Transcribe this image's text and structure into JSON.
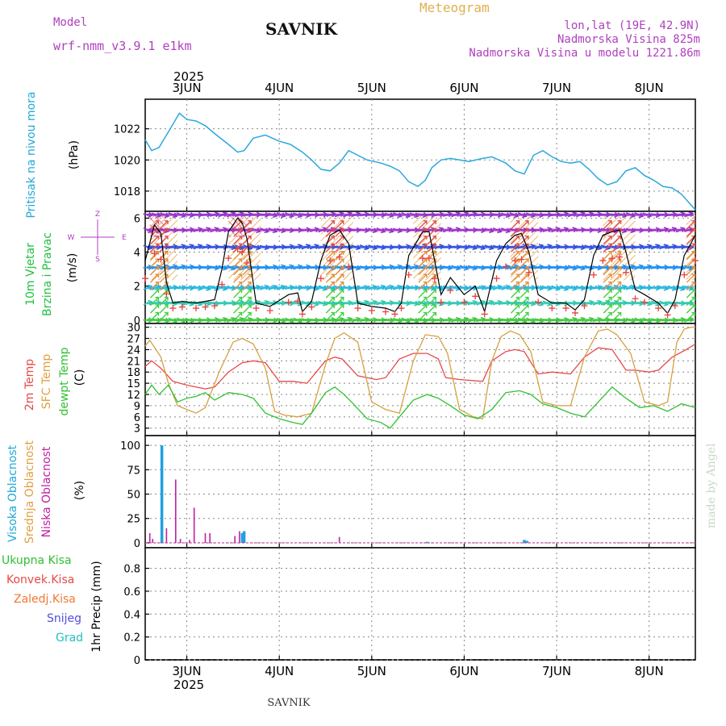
{
  "header": {
    "model_label": "Model",
    "model_name": "wrf-nmm_v3.9.1 e1km",
    "location": "SAVNIK",
    "meteogram": "Meteogram",
    "coords": "lon,lat (19E, 42.9N)",
    "elevation": "Nadmorska Visina 825m",
    "model_elevation": "Nadmorska Visina u modelu 1221.86m"
  },
  "axis": {
    "year": "2025",
    "dates": [
      "3JUN",
      "4JUN",
      "5JUN",
      "6JUN",
      "7JUN",
      "8JUN"
    ],
    "bottom_label": "SAVNIK",
    "credit": "made by Angel"
  },
  "colors": {
    "pressure": "#2aa8e0",
    "temp2m": "#e84848",
    "sfc": "#d8a040",
    "dewpt": "#30c030",
    "high_cloud": "#20a0e0",
    "mid_cloud": "#e0a040",
    "low_cloud": "#c020a0",
    "wind_speed": "#000000",
    "gust_marker": "#e84040"
  },
  "chart_data": [
    {
      "type": "line",
      "panel": "pressure",
      "ylabel": [
        "Pritisak na nivou mora",
        "(hPa)"
      ],
      "ylim": [
        1016.7,
        1023.9
      ],
      "yticks": [
        "1018",
        "1020",
        "1022"
      ],
      "x_start_day": 2.55,
      "x_end_day": 8.5,
      "series": [
        {
          "x": [
            2.55,
            2.62,
            2.7,
            2.8,
            2.92,
            3.0,
            3.1,
            3.2,
            3.3,
            3.45,
            3.55,
            3.62,
            3.72,
            3.85,
            4.0,
            4.12,
            4.25,
            4.35,
            4.45,
            4.55,
            4.65,
            4.75,
            4.85,
            4.95,
            5.1,
            5.2,
            5.3,
            5.4,
            5.5,
            5.58,
            5.65,
            5.75,
            5.85,
            5.95,
            6.05,
            6.2,
            6.3,
            6.45,
            6.55,
            6.65,
            6.75,
            6.85,
            6.95,
            7.05,
            7.15,
            7.25,
            7.35,
            7.45,
            7.55,
            7.65,
            7.75,
            7.85,
            7.95,
            8.05,
            8.15,
            8.25,
            8.35,
            8.5
          ],
          "values": [
            1021.3,
            1020.6,
            1020.8,
            1021.8,
            1023.0,
            1022.6,
            1022.5,
            1022.2,
            1021.7,
            1021.0,
            1020.5,
            1020.6,
            1021.4,
            1021.6,
            1021.2,
            1021.0,
            1020.5,
            1020.0,
            1019.4,
            1019.3,
            1019.8,
            1020.6,
            1020.3,
            1020.0,
            1019.8,
            1019.6,
            1019.3,
            1018.6,
            1018.3,
            1018.7,
            1019.5,
            1020.0,
            1020.1,
            1020.0,
            1019.9,
            1020.1,
            1020.2,
            1019.8,
            1019.3,
            1019.1,
            1020.3,
            1020.6,
            1020.2,
            1019.9,
            1019.8,
            1019.9,
            1019.4,
            1018.8,
            1018.4,
            1018.6,
            1019.3,
            1019.5,
            1019.0,
            1018.7,
            1018.3,
            1018.2,
            1017.8,
            1016.8
          ]
        }
      ]
    },
    {
      "type": "line",
      "panel": "wind",
      "ylabel": [
        "10m Vjetar",
        "Brzina i Pravac",
        "(m/s)"
      ],
      "compass": [
        "Z",
        "W",
        "E",
        "S"
      ],
      "ylim": [
        -0.2,
        6.4
      ],
      "yticks": [
        "0",
        "2",
        "4",
        "6"
      ],
      "series": [
        {
          "name": "speed",
          "x": [
            2.55,
            2.65,
            2.72,
            2.78,
            2.85,
            2.95,
            3.1,
            3.2,
            3.3,
            3.38,
            3.45,
            3.55,
            3.6,
            3.65,
            3.75,
            3.9,
            4.1,
            4.2,
            4.25,
            4.35,
            4.45,
            4.55,
            4.65,
            4.75,
            4.85,
            5.0,
            5.15,
            5.25,
            5.32,
            5.4,
            5.55,
            5.62,
            5.68,
            5.75,
            5.85,
            6.0,
            6.12,
            6.22,
            6.35,
            6.45,
            6.55,
            6.62,
            6.7,
            6.8,
            6.95,
            7.1,
            7.2,
            7.3,
            7.4,
            7.5,
            7.6,
            7.68,
            7.75,
            7.85,
            7.95,
            8.1,
            8.2,
            8.28,
            8.38,
            8.5
          ],
          "values": [
            3.5,
            5.6,
            5.1,
            2.2,
            1.0,
            1.1,
            1.0,
            1.1,
            1.2,
            3.0,
            5.2,
            6.0,
            5.7,
            4.8,
            1.0,
            0.8,
            1.5,
            1.6,
            0.5,
            1.1,
            3.5,
            5.0,
            5.3,
            4.5,
            1.0,
            0.8,
            0.7,
            0.5,
            1.0,
            3.8,
            5.2,
            5.2,
            3.5,
            1.5,
            2.5,
            1.5,
            2.0,
            0.5,
            3.5,
            4.5,
            5.0,
            5.1,
            4.0,
            1.5,
            1.0,
            1.0,
            0.6,
            1.2,
            3.8,
            5.0,
            5.2,
            5.3,
            4.0,
            1.8,
            1.5,
            1.0,
            0.4,
            1.2,
            3.8,
            5.0
          ]
        }
      ]
    },
    {
      "type": "line",
      "panel": "temperature",
      "ylabel": [
        "2m Temp",
        "SFC Temp",
        "dewpt Temp",
        "(C)"
      ],
      "ylim": [
        1.0,
        31.0
      ],
      "yticks": [
        "3",
        "6",
        "9",
        "12",
        "15",
        "18",
        "21",
        "24",
        "27",
        "30"
      ],
      "series": [
        {
          "name": "2m",
          "x": [
            2.55,
            2.62,
            2.72,
            2.85,
            3.0,
            3.1,
            3.2,
            3.3,
            3.45,
            3.6,
            3.72,
            3.85,
            4.0,
            4.15,
            4.3,
            4.5,
            4.6,
            4.68,
            4.85,
            5.05,
            5.15,
            5.3,
            5.45,
            5.6,
            5.72,
            5.8,
            5.95,
            6.2,
            6.3,
            6.45,
            6.55,
            6.65,
            6.8,
            6.95,
            7.15,
            7.3,
            7.45,
            7.6,
            7.75,
            7.85,
            8.0,
            8.1,
            8.25,
            8.4,
            8.5
          ],
          "values": [
            19.5,
            21.0,
            19.0,
            15.5,
            14.5,
            14.0,
            13.5,
            14.0,
            18.0,
            20.5,
            21.0,
            20.5,
            15.5,
            15.5,
            15.0,
            21.0,
            22.0,
            21.5,
            17.0,
            16.0,
            16.5,
            21.5,
            23.0,
            23.0,
            21.5,
            16.5,
            16.0,
            15.5,
            21.0,
            23.5,
            24.0,
            23.5,
            17.5,
            18.0,
            17.5,
            22.0,
            24.5,
            24.0,
            18.5,
            18.5,
            18.0,
            18.5,
            22.0,
            24.0,
            25.5
          ]
        },
        {
          "name": "sfc",
          "x": [
            2.55,
            2.6,
            2.72,
            2.8,
            2.9,
            3.0,
            3.1,
            3.2,
            3.35,
            3.5,
            3.6,
            3.72,
            3.85,
            3.95,
            4.05,
            4.2,
            4.35,
            4.5,
            4.6,
            4.7,
            4.85,
            5.0,
            5.15,
            5.3,
            5.45,
            5.58,
            5.72,
            5.82,
            5.95,
            6.1,
            6.2,
            6.3,
            6.4,
            6.5,
            6.6,
            6.72,
            6.85,
            7.0,
            7.15,
            7.3,
            7.45,
            7.55,
            7.65,
            7.8,
            7.95,
            8.1,
            8.2,
            8.3,
            8.38,
            8.45,
            8.5
          ],
          "values": [
            25.0,
            26.5,
            22.0,
            15.0,
            9.0,
            8.0,
            7.0,
            8.5,
            18.0,
            26.0,
            27.0,
            25.5,
            19.0,
            7.5,
            6.5,
            6.0,
            7.0,
            20.0,
            27.0,
            28.5,
            26.0,
            10.0,
            8.0,
            7.0,
            21.0,
            28.0,
            27.5,
            23.0,
            8.0,
            6.0,
            5.5,
            21.0,
            27.5,
            29.0,
            28.0,
            23.5,
            10.0,
            9.0,
            9.0,
            22.0,
            29.0,
            29.5,
            28.0,
            23.0,
            10.0,
            9.0,
            10.0,
            26.0,
            29.5,
            30.0,
            30.0
          ]
        },
        {
          "name": "dewpt",
          "x": [
            2.55,
            2.62,
            2.7,
            2.8,
            2.9,
            3.0,
            3.1,
            3.2,
            3.3,
            3.45,
            3.6,
            3.72,
            3.85,
            4.0,
            4.15,
            4.25,
            4.35,
            4.5,
            4.6,
            4.7,
            4.8,
            4.95,
            5.1,
            5.2,
            5.3,
            5.45,
            5.6,
            5.72,
            5.85,
            6.0,
            6.15,
            6.3,
            6.45,
            6.6,
            6.72,
            6.85,
            7.0,
            7.15,
            7.3,
            7.45,
            7.6,
            7.75,
            7.9,
            8.05,
            8.2,
            8.35,
            8.5
          ],
          "values": [
            12.0,
            14.5,
            12.0,
            14.5,
            10.0,
            11.0,
            11.5,
            12.5,
            10.5,
            12.5,
            12.0,
            11.0,
            7.0,
            5.5,
            4.5,
            4.0,
            7.0,
            12.5,
            14.0,
            12.0,
            9.5,
            5.5,
            4.5,
            3.0,
            6.0,
            10.5,
            12.0,
            11.0,
            9.0,
            6.5,
            5.5,
            8.0,
            12.5,
            13.0,
            12.0,
            9.5,
            8.5,
            7.0,
            6.0,
            10.0,
            14.0,
            11.0,
            8.5,
            9.0,
            7.5,
            9.5,
            8.5
          ]
        }
      ]
    },
    {
      "type": "bar",
      "panel": "cloud",
      "ylabel": [
        "Visoka Oblacnost",
        "Srednja Oblacnost",
        "Niska Oblacnost",
        "(%)"
      ],
      "ylim": [
        -5,
        110
      ],
      "yticks": [
        "0",
        "25",
        "50",
        "75",
        "100"
      ],
      "series": [
        {
          "name": "high",
          "x": [
            2.73,
            3.6,
            3.62,
            5.6,
            6.65,
            6.68
          ],
          "values": [
            100,
            10,
            12,
            1,
            3,
            2
          ]
        },
        {
          "name": "low",
          "x": [
            2.6,
            2.63,
            2.78,
            2.88,
            2.93,
            3.03,
            3.08,
            3.2,
            3.25,
            3.52,
            3.57,
            4.65
          ],
          "values": [
            10,
            4,
            15,
            65,
            4,
            3,
            36,
            10,
            10,
            7,
            12,
            6
          ]
        }
      ]
    },
    {
      "type": "line",
      "panel": "precip",
      "ylabel": [
        "1hr Precip (mm)"
      ],
      "legend": [
        "Ukupna Kisa",
        "Konvek.Kisa",
        "Zaledj.Kisa",
        "Snijeg",
        "Grad"
      ],
      "legend_colors": [
        "#30c030",
        "#e84848",
        "#f07830",
        "#5050e0",
        "#20c0c0"
      ],
      "ylim": [
        0,
        0.98
      ],
      "yticks": [
        "0",
        "0.2",
        "0.4",
        "0.6",
        "0.8"
      ],
      "series": [
        {
          "x": [
            2.55,
            8.5
          ],
          "values": [
            0,
            0
          ]
        }
      ]
    }
  ]
}
